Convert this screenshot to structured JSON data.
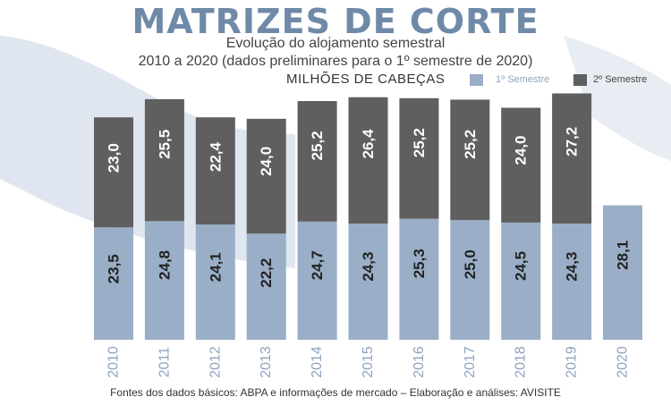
{
  "header": {
    "title": "MATRIZES DE CORTE",
    "subtitle_line1": "Evolução do alojamento semestral",
    "subtitle_line2": "2010 a 2020 (dados preliminares para o 1º semestre de 2020)",
    "unit": "MILHÕES DE CABEÇAS"
  },
  "legend": {
    "first": "1º Semestre",
    "second": "2º Semestre"
  },
  "footer": {
    "source": "Fontes dos dados básicos: ABPA e informações de mercado – Elaboração e análises: AVISITE"
  },
  "colors": {
    "first_semester": "#9aaec7",
    "second_semester": "#5f5f5f",
    "title": "#6f8aa8",
    "background_shape": "#dfe6ef"
  },
  "chart_data": {
    "type": "bar",
    "stacked": true,
    "categories": [
      "2010",
      "2011",
      "2012",
      "2013",
      "2014",
      "2015",
      "2016",
      "2017",
      "2018",
      "2019",
      "2020"
    ],
    "series": [
      {
        "name": "1º Semestre",
        "values": [
          23.5,
          24.8,
          24.1,
          22.2,
          24.7,
          24.3,
          25.3,
          25.0,
          24.5,
          24.3,
          28.1
        ],
        "labels": [
          "23,5",
          "24,8",
          "24,1",
          "22,2",
          "24,7",
          "24,3",
          "25,3",
          "25,0",
          "24,5",
          "24,3",
          "28,1"
        ]
      },
      {
        "name": "2º Semestre",
        "values": [
          23.0,
          25.5,
          22.4,
          24.0,
          25.2,
          26.4,
          25.2,
          25.2,
          24.0,
          27.2,
          null
        ],
        "labels": [
          "23,0",
          "25,5",
          "22,4",
          "24,0",
          "25,2",
          "26,4",
          "25,2",
          "25,2",
          "24,0",
          "27,2",
          ""
        ]
      }
    ],
    "ylim": [
      0,
      52
    ]
  }
}
